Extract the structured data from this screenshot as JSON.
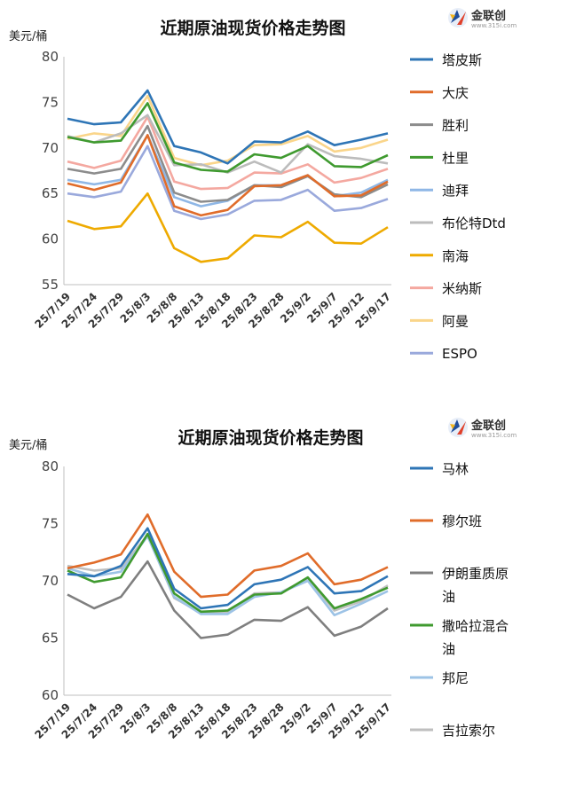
{
  "logo": {
    "name": "金联创",
    "url": "www.315i.com"
  },
  "colors": {
    "tapis": "#2e75b6",
    "daqing": "#e06c2a",
    "shengli": "#8c8c8c",
    "duri": "#3f9a2f",
    "dubai": "#8fb7e6",
    "brent": "#bcbcbc",
    "nanhai": "#eeaa00",
    "minas": "#f4a8a0",
    "oman": "#fad58a",
    "espo": "#9aa9dc",
    "malin": "#2e75b6",
    "murban": "#e06c2a",
    "iranheavy": "#7f7f7f",
    "saharan": "#3f9a2f",
    "bonny": "#9dc3e6",
    "girassol": "#bfbfbf"
  },
  "chart_data": [
    {
      "type": "line",
      "title": "近期原油现货价格走势图",
      "ylabel": "美元/桶",
      "ylim": [
        55,
        80
      ],
      "yticks": [
        55,
        60,
        65,
        70,
        75,
        80
      ],
      "categories": [
        "25/7/19",
        "25/7/24",
        "25/7/29",
        "25/8/3",
        "25/8/8",
        "25/8/13",
        "25/8/18",
        "25/8/23",
        "25/8/28",
        "25/9/2",
        "25/9/7",
        "25/9/12",
        "25/9/17"
      ],
      "legend_position": "right",
      "series": [
        {
          "name": "塔皮斯",
          "color_key": "tapis",
          "values": [
            73.2,
            72.6,
            72.8,
            76.3,
            70.2,
            69.5,
            68.3,
            70.7,
            70.6,
            71.8,
            70.3,
            70.9,
            71.6
          ]
        },
        {
          "name": "大庆",
          "color_key": "daqing",
          "values": [
            66.1,
            65.4,
            66.2,
            71.4,
            63.6,
            62.6,
            63.2,
            65.8,
            65.9,
            67.0,
            64.7,
            64.8,
            66.3
          ]
        },
        {
          "name": "胜利",
          "color_key": "shengli",
          "values": [
            67.7,
            67.2,
            67.7,
            72.4,
            65.1,
            64.1,
            64.3,
            65.9,
            65.7,
            66.9,
            64.9,
            64.6,
            66.0
          ]
        },
        {
          "name": "杜里",
          "color_key": "duri",
          "values": [
            71.2,
            70.6,
            70.8,
            74.9,
            68.4,
            67.6,
            67.4,
            69.3,
            68.9,
            70.2,
            68.0,
            67.9,
            69.2
          ]
        },
        {
          "name": "迪拜",
          "color_key": "dubai",
          "values": [
            66.5,
            66.0,
            66.5,
            71.4,
            64.6,
            63.6,
            64.2,
            65.9,
            65.9,
            67.0,
            64.7,
            65.1,
            66.5
          ]
        },
        {
          "name": "布伦特Dtd",
          "color_key": "brent",
          "values": [
            71.3,
            70.6,
            71.6,
            73.6,
            68.1,
            68.2,
            67.3,
            68.5,
            67.3,
            70.4,
            69.1,
            68.8,
            68.3
          ]
        },
        {
          "name": "南海",
          "color_key": "nanhai",
          "values": [
            62.0,
            61.1,
            61.4,
            65.0,
            59.0,
            57.5,
            57.9,
            60.4,
            60.2,
            61.9,
            59.6,
            59.5,
            61.3
          ]
        },
        {
          "name": "米纳斯",
          "color_key": "minas",
          "values": [
            68.5,
            67.8,
            68.6,
            73.4,
            66.3,
            65.5,
            65.6,
            67.3,
            67.2,
            68.2,
            66.2,
            66.7,
            67.7
          ]
        },
        {
          "name": "阿曼",
          "color_key": "oman",
          "values": [
            71.0,
            71.6,
            71.3,
            75.7,
            68.9,
            68.1,
            68.6,
            70.3,
            70.4,
            71.3,
            69.6,
            70.0,
            70.9
          ]
        },
        {
          "name": "ESPO",
          "color_key": "espo",
          "values": [
            65.0,
            64.6,
            65.2,
            70.2,
            63.1,
            62.2,
            62.7,
            64.2,
            64.3,
            65.4,
            63.1,
            63.4,
            64.4
          ]
        }
      ]
    },
    {
      "type": "line",
      "title": "近期原油现货价格走势图",
      "ylabel": "美元/桶",
      "ylim": [
        60,
        80
      ],
      "yticks": [
        60,
        65,
        70,
        75,
        80
      ],
      "categories": [
        "25/7/19",
        "25/7/24",
        "25/7/29",
        "25/8/3",
        "25/8/8",
        "25/8/13",
        "25/8/18",
        "25/8/23",
        "25/8/28",
        "25/9/2",
        "25/9/7",
        "25/9/12",
        "25/9/17"
      ],
      "legend_position": "right",
      "series": [
        {
          "name": "马林",
          "color_key": "malin",
          "values": [
            70.6,
            70.4,
            71.3,
            74.6,
            69.3,
            67.6,
            67.9,
            69.7,
            70.1,
            71.2,
            68.9,
            69.1,
            70.4
          ]
        },
        {
          "name": "穆尔班",
          "color_key": "murban",
          "values": [
            71.1,
            71.6,
            72.3,
            75.8,
            70.8,
            68.6,
            68.8,
            70.9,
            71.3,
            72.4,
            69.7,
            70.1,
            71.2
          ]
        },
        {
          "name": "伊朗重质原油",
          "color_key": "iranheavy",
          "values": [
            68.8,
            67.6,
            68.6,
            71.7,
            67.4,
            65.0,
            65.3,
            66.6,
            66.5,
            67.7,
            65.2,
            66.0,
            67.6
          ]
        },
        {
          "name": "撒哈拉混合油",
          "color_key": "saharan",
          "values": [
            70.9,
            69.9,
            70.3,
            74.1,
            68.9,
            67.3,
            67.4,
            68.8,
            68.9,
            70.3,
            67.6,
            68.4,
            69.4
          ]
        },
        {
          "name": "邦尼",
          "color_key": "bonny",
          "values": [
            71.1,
            70.4,
            70.8,
            73.9,
            68.6,
            67.1,
            67.1,
            68.6,
            69.0,
            70.0,
            67.0,
            68.0,
            69.1
          ]
        },
        {
          "name": "吉拉索尔",
          "color_key": "girassol",
          "values": [
            71.3,
            70.9,
            71.1,
            74.0,
            68.5,
            67.2,
            67.3,
            68.9,
            69.0,
            70.2,
            67.4,
            68.2,
            69.6
          ]
        }
      ]
    }
  ]
}
